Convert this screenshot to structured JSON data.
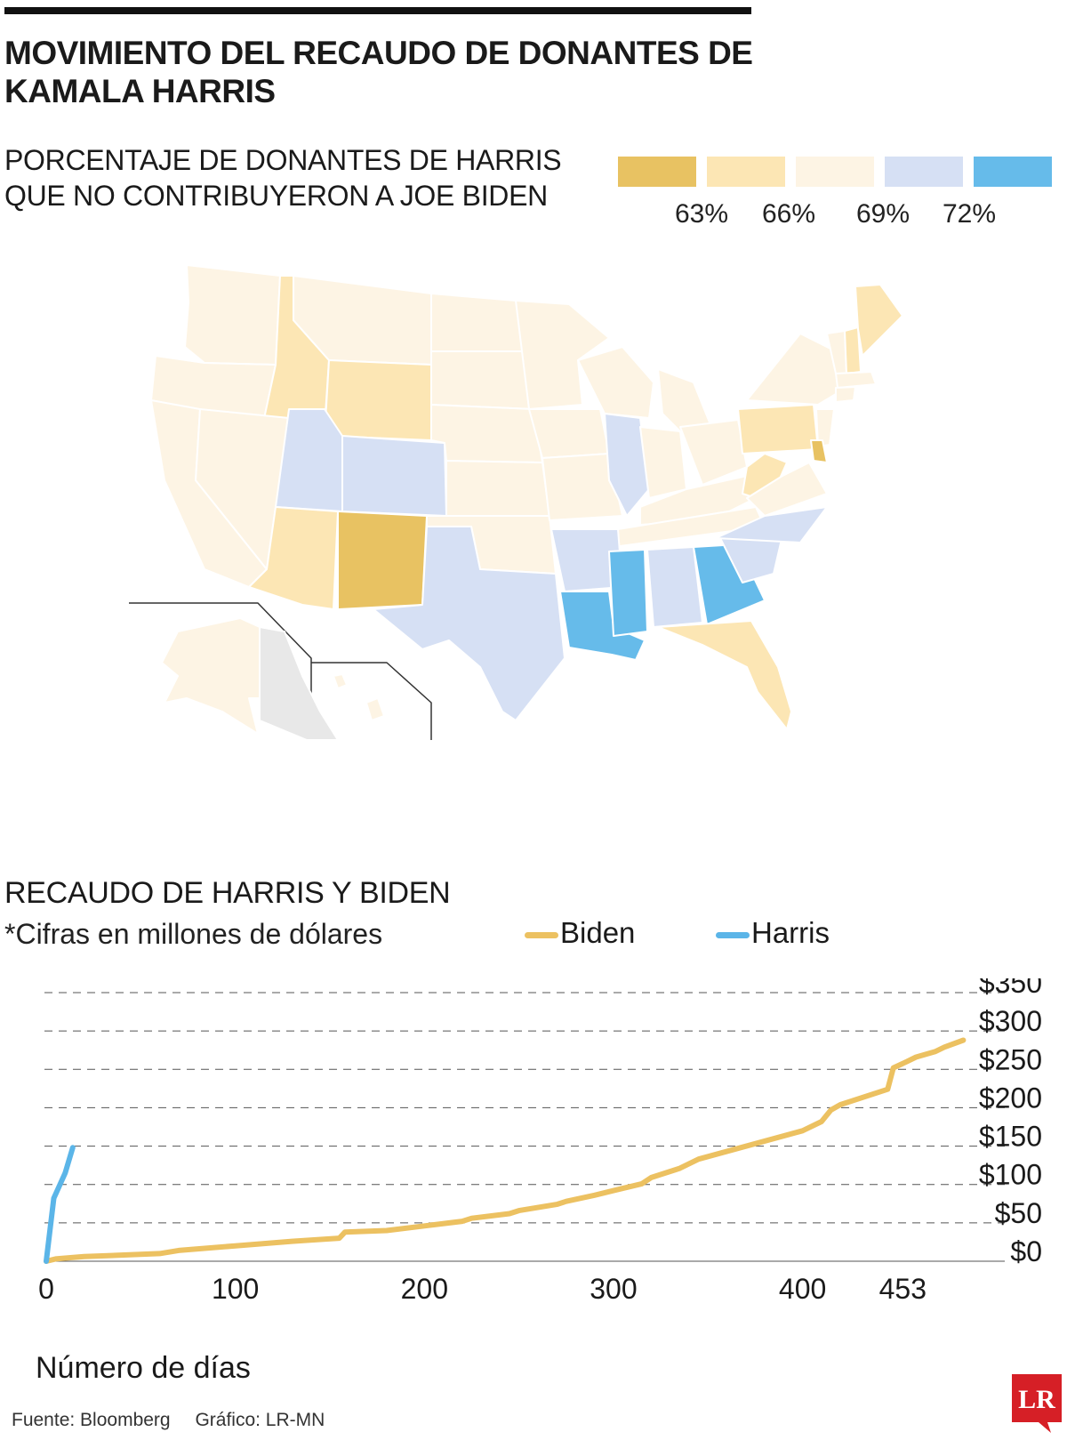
{
  "header": {
    "title": "MOVIMIENTO DEL RECAUDO DE DONANTES DE KAMALA HARRIS"
  },
  "map": {
    "title": "PORCENTAJE DE DONANTES DE HARRIS QUE NO CONTRIBUYERON A JOE BIDEN",
    "legend": {
      "colors": [
        "#e8c262",
        "#fce6b4",
        "#fdf4e4",
        "#d6e0f4",
        "#66bbea"
      ],
      "labels": [
        "63%",
        "66%",
        "69%",
        "72%"
      ]
    },
    "categories": {
      "c63": "#e8c262",
      "c66": "#fce6b4",
      "c69": "#fdf4e4",
      "c72": "#d6e0f4",
      "c75": "#66bbea",
      "nodata": "#e8e8e8"
    }
  },
  "chart_data": {
    "type": "line",
    "title": "RECAUDO DE HARRIS Y BIDEN",
    "subtitle": "*Cifras en millones de dólares",
    "xlabel": "Número de días",
    "ylabel": "",
    "xlim": [
      0,
      490
    ],
    "ylim": [
      0,
      350
    ],
    "x_ticks": [
      0,
      100,
      200,
      300,
      400,
      453
    ],
    "y_ticks": [
      0,
      50,
      100,
      150,
      200,
      250,
      300,
      350
    ],
    "y_tick_labels": [
      "$0",
      "$50",
      "$100",
      "$150",
      "$200",
      "$250",
      "$300",
      "$350"
    ],
    "grid": "horizontal-dashed",
    "legend_position": "top-right",
    "series": [
      {
        "name": "Biden",
        "color": "#ecc161",
        "points": [
          [
            0,
            0
          ],
          [
            5,
            3
          ],
          [
            20,
            6
          ],
          [
            60,
            10
          ],
          [
            70,
            14
          ],
          [
            100,
            20
          ],
          [
            130,
            26
          ],
          [
            155,
            30
          ],
          [
            158,
            38
          ],
          [
            180,
            40
          ],
          [
            200,
            46
          ],
          [
            220,
            52
          ],
          [
            225,
            56
          ],
          [
            245,
            62
          ],
          [
            250,
            66
          ],
          [
            270,
            74
          ],
          [
            275,
            78
          ],
          [
            290,
            86
          ],
          [
            300,
            92
          ],
          [
            315,
            101
          ],
          [
            320,
            109
          ],
          [
            335,
            121
          ],
          [
            345,
            133
          ],
          [
            400,
            170
          ],
          [
            410,
            182
          ],
          [
            415,
            197
          ],
          [
            420,
            204
          ],
          [
            445,
            224
          ],
          [
            448,
            252
          ],
          [
            455,
            260
          ],
          [
            460,
            266
          ],
          [
            470,
            273
          ],
          [
            475,
            279
          ],
          [
            485,
            288
          ]
        ]
      },
      {
        "name": "Harris",
        "color": "#5bb5e8",
        "points": [
          [
            0,
            0
          ],
          [
            4,
            82
          ],
          [
            10,
            115
          ],
          [
            14,
            148
          ]
        ]
      }
    ]
  },
  "footer": {
    "source": "Fuente: Bloomberg",
    "credit": "Gráfico: LR-MN"
  },
  "logo": {
    "text": "LR",
    "color": "#d61f26"
  }
}
